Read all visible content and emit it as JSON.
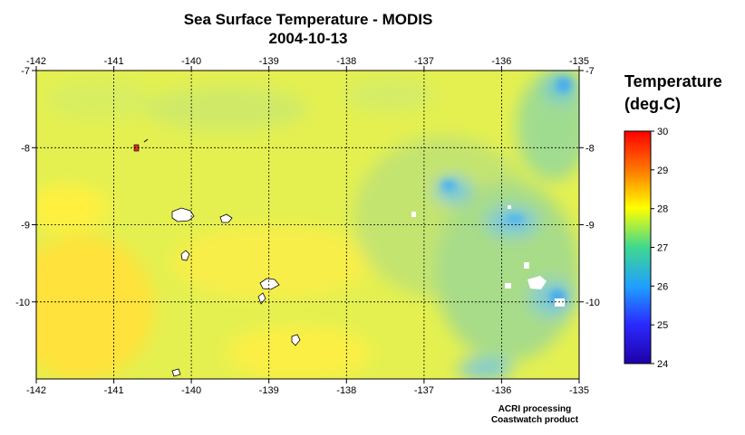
{
  "title": "Sea Surface Temperature - MODIS",
  "date": "2004-10-13",
  "legend": {
    "title_line1": "Temperature",
    "title_line2": "(deg.C)",
    "ticks": [
      "30",
      "29",
      "28",
      "27",
      "26",
      "25",
      "24"
    ],
    "colors": [
      "#ff0000",
      "#ff7a00",
      "#ffff00",
      "#40d890",
      "#1f9fff",
      "#2a2aff",
      "#1e00a8"
    ]
  },
  "credits": [
    "ACRI processing",
    "Coastwatch product"
  ],
  "chart_data": {
    "type": "heatmap",
    "x_ticks": [
      "-142",
      "-141",
      "-140",
      "-139",
      "-138",
      "-137",
      "-136",
      "-135"
    ],
    "y_ticks": [
      "-7",
      "-8",
      "-9",
      "-10"
    ],
    "xlim": [
      -142,
      -135
    ],
    "ylim": [
      -11,
      -7
    ],
    "value_range": [
      24,
      30
    ],
    "grid": true,
    "colors": {
      "background_sst": "#e4f050",
      "warm_sst": "#ffec40",
      "cool_sst": "#90d890",
      "cold_sst": "#40b0e8",
      "land_or_cloud": "#ffffff"
    }
  }
}
